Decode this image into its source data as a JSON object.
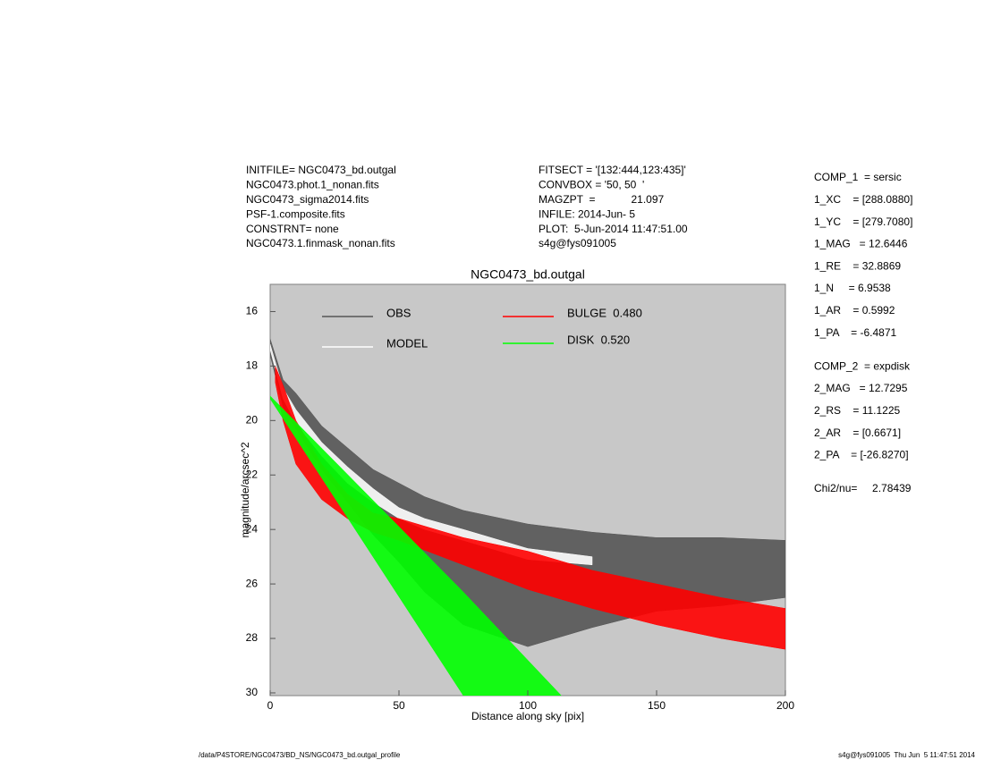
{
  "chart_data": {
    "type": "band",
    "title": "NGC0473_bd.outgal",
    "x_label": "Distance along sky [pix]",
    "y_label": "magnitude/arcsec^2",
    "xlim": [
      0,
      200
    ],
    "xticks": [
      0,
      50,
      100,
      150,
      200
    ],
    "ylim": [
      30.1,
      15
    ],
    "yticks": [
      16,
      18,
      20,
      22,
      24,
      26,
      28,
      30
    ],
    "series": [
      {
        "name": "OBS",
        "color": "#555555",
        "x": [
          0,
          5,
          10,
          20,
          30,
          40,
          50,
          60,
          75,
          100,
          125,
          150,
          175,
          200
        ],
        "y_high": [
          17.0,
          18.5,
          19.0,
          20.2,
          21.0,
          21.8,
          22.3,
          22.8,
          23.3,
          23.8,
          24.1,
          24.3,
          24.3,
          24.4
        ],
        "y_low": [
          17.6,
          19.5,
          20.3,
          21.8,
          23.0,
          24.2,
          25.2,
          26.3,
          27.5,
          28.3,
          27.6,
          27.0,
          26.8,
          26.5
        ]
      },
      {
        "name": "MODEL",
        "color": "#ffffff",
        "x": [
          0,
          5,
          10,
          20,
          30,
          40,
          50,
          60,
          75,
          100,
          125
        ],
        "y_high": [
          17.2,
          18.8,
          19.6,
          20.8,
          21.7,
          22.5,
          23.2,
          23.6,
          24.0,
          24.7,
          25.0
        ],
        "y_low": [
          17.4,
          19.2,
          20.1,
          21.3,
          22.3,
          23.0,
          23.6,
          24.0,
          24.4,
          25.1,
          25.3
        ]
      },
      {
        "name": "BULGE  0.480",
        "color": "#ff0000",
        "x": [
          2,
          5,
          10,
          20,
          30,
          40,
          50,
          75,
          100,
          125,
          150,
          175,
          200
        ],
        "y_high": [
          18.0,
          18.7,
          20.0,
          21.6,
          22.7,
          23.4,
          23.6,
          24.3,
          24.8,
          25.5,
          26.0,
          26.5,
          26.9
        ],
        "y_low": [
          18.6,
          20.0,
          21.6,
          22.9,
          23.6,
          24.1,
          24.4,
          25.3,
          26.2,
          26.9,
          27.5,
          28.0,
          28.4
        ]
      },
      {
        "name": "DISK  0.520",
        "color": "#00ff00",
        "x": [
          0,
          75,
          113
        ],
        "y_high": [
          19.1,
          26.3,
          30.1
        ],
        "y_low": [
          19.2,
          30.1,
          30.1
        ]
      }
    ],
    "notes_left": [
      "INITFILE= NGC0473_bd.outgal",
      "NGC0473.phot.1_nonan.fits",
      "NGC0473_sigma2014.fits",
      "PSF-1.composite.fits",
      "CONSTRNT= none",
      "NGC0473.1.finmask_nonan.fits"
    ],
    "notes_middle": [
      "FITSECT = '[132:444,123:435]'",
      "CONVBOX = '50, 50  '",
      "MAGZPT  =            21.097",
      "INFILE: 2014-Jun- 5",
      "PLOT:  5-Jun-2014 11:47:51.00",
      "s4g@fys091005"
    ],
    "params": [
      [
        "COMP_1  = sersic",
        "1_XC    = [288.0880]",
        "1_YC    = [279.7080]",
        "1_MAG   = 12.6446",
        "1_RE    = 32.8869",
        "1_N     = 6.9538",
        "1_AR    = 0.5992",
        "1_PA    = -6.4871"
      ],
      [
        "COMP_2  = expdisk",
        "2_MAG   = 12.7295",
        "2_RS    = 11.1225",
        "2_AR    = [0.6671]",
        "2_PA    = [-26.8270]"
      ],
      [
        "Chi2/nu=     2.78439"
      ]
    ],
    "footer_left": "/data/P4STORE/NGC0473/BD_NS/NGC0473_bd.outgal_profile",
    "footer_right": "s4g@fys091005  Thu Jun  5 11:47:51 2014"
  }
}
